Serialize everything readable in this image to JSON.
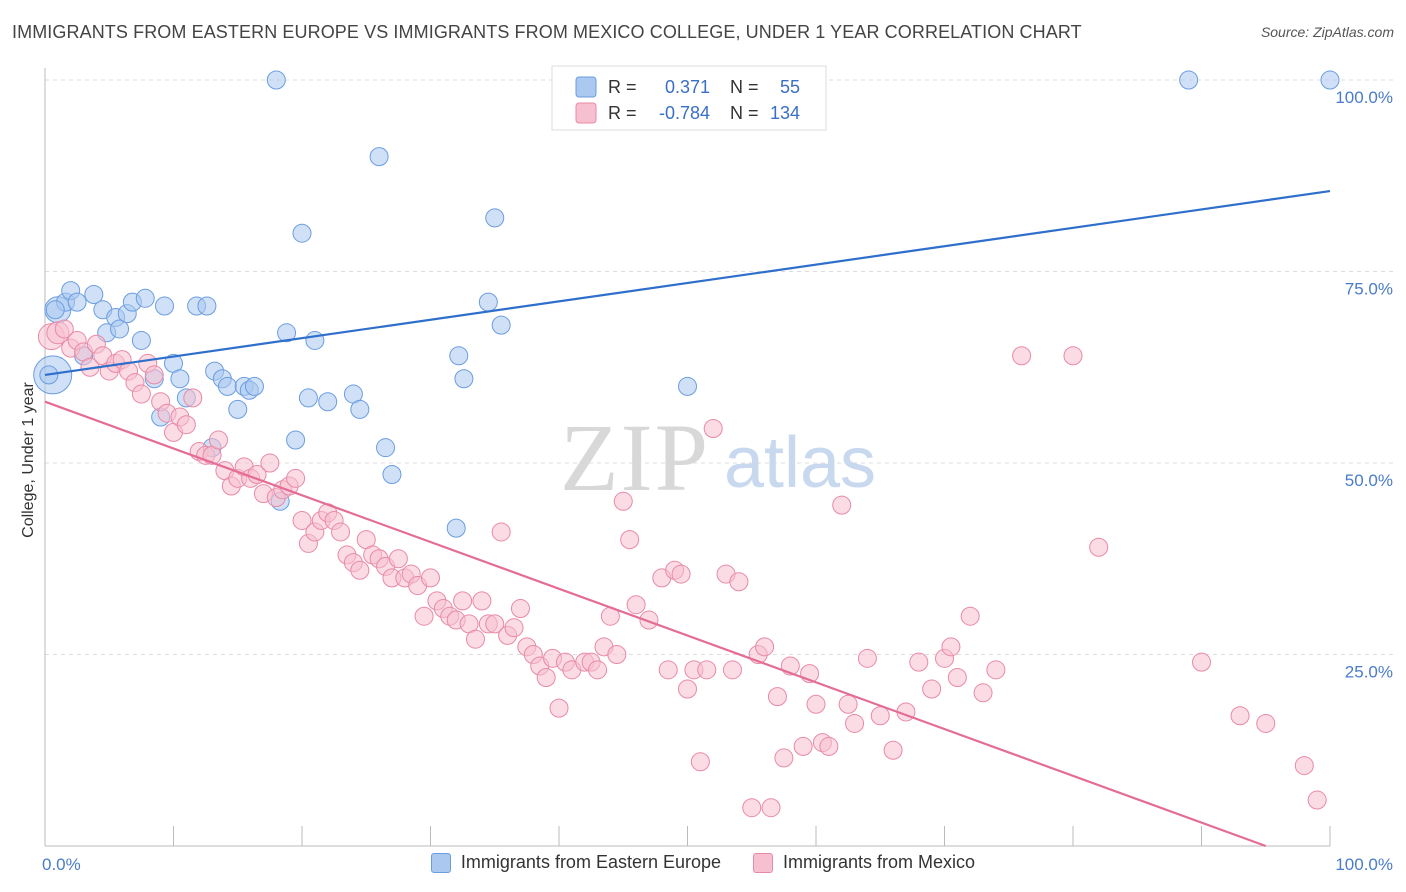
{
  "title": "IMMIGRANTS FROM EASTERN EUROPE VS IMMIGRANTS FROM MEXICO COLLEGE, UNDER 1 YEAR CORRELATION CHART",
  "source": "Source: ZipAtlas.com",
  "watermark": {
    "zip": "ZIP",
    "atlas": "atlas"
  },
  "legend": {
    "r_label": "R =",
    "n_label": "N =",
    "rows": [
      {
        "r": "0.371",
        "n": "55",
        "color": "#aac8f0",
        "stroke": "#6b9de0"
      },
      {
        "r": "-0.784",
        "n": "134",
        "color": "#f7c0d0",
        "stroke": "#e88aa6"
      }
    ]
  },
  "bottom_legend": [
    {
      "label": "Immigrants from Eastern Europe",
      "color": "#aac8f0",
      "stroke": "#6b9de0"
    },
    {
      "label": "Immigrants from Mexico",
      "color": "#f7c0d0",
      "stroke": "#e88aa6"
    }
  ],
  "chart_data": {
    "type": "scatter",
    "title": "IMMIGRANTS FROM EASTERN EUROPE VS IMMIGRANTS FROM MEXICO COLLEGE, UNDER 1 YEAR CORRELATION CHART",
    "xlabel": "",
    "ylabel": "College, Under 1 year",
    "xlim": [
      0,
      100
    ],
    "ylim": [
      0,
      100
    ],
    "x_tick_labels": [
      "0.0%",
      "100.0%"
    ],
    "y_tick_labels": [
      "25.0%",
      "50.0%",
      "75.0%",
      "100.0%"
    ],
    "y_ticks": [
      25,
      50,
      75,
      100
    ],
    "grid": true,
    "legend_position": "top-center",
    "series": [
      {
        "name": "Immigrants from Eastern Europe",
        "color": "#6b9de0",
        "fill": "#aac8f0",
        "trend": {
          "x0": 0,
          "y0": 61.5,
          "x1": 100,
          "y1": 85.5,
          "color": "#2f6fcc"
        },
        "points": [
          [
            0.6,
            61.5
          ],
          [
            1,
            70
          ],
          [
            1.6,
            71
          ],
          [
            2,
            72.5
          ],
          [
            2.5,
            71
          ],
          [
            3,
            64
          ],
          [
            3.8,
            72
          ],
          [
            4.5,
            70
          ],
          [
            4.8,
            67
          ],
          [
            5.5,
            69
          ],
          [
            5.8,
            67.5
          ],
          [
            6.4,
            69.5
          ],
          [
            6.8,
            71
          ],
          [
            7.5,
            66
          ],
          [
            7.8,
            71.5
          ],
          [
            8.5,
            61
          ],
          [
            9,
            56
          ],
          [
            9.3,
            70.5
          ],
          [
            10,
            63
          ],
          [
            10.5,
            61
          ],
          [
            11,
            58.5
          ],
          [
            11.8,
            70.5
          ],
          [
            12.6,
            70.5
          ],
          [
            13,
            52
          ],
          [
            13.2,
            62
          ],
          [
            13.8,
            61
          ],
          [
            14.2,
            60
          ],
          [
            15,
            57
          ],
          [
            15.5,
            60
          ],
          [
            15.9,
            59.5
          ],
          [
            16.3,
            60
          ],
          [
            18,
            100
          ],
          [
            18.3,
            45
          ],
          [
            18.8,
            67
          ],
          [
            19.5,
            53
          ],
          [
            20,
            80
          ],
          [
            20.5,
            58.5
          ],
          [
            21,
            66
          ],
          [
            22,
            58
          ],
          [
            24,
            59
          ],
          [
            24.5,
            57
          ],
          [
            26,
            90
          ],
          [
            26.5,
            52
          ],
          [
            27,
            48.5
          ],
          [
            32,
            41.5
          ],
          [
            32.2,
            64
          ],
          [
            32.6,
            61
          ],
          [
            34.5,
            71
          ],
          [
            35,
            82
          ],
          [
            35.5,
            68
          ],
          [
            50,
            60
          ],
          [
            89,
            100
          ],
          [
            100,
            100
          ],
          [
            0.3,
            61.5
          ],
          [
            0.8,
            70
          ]
        ]
      },
      {
        "name": "Immigrants from Mexico",
        "color": "#e88aa6",
        "fill": "#f7c0d0",
        "trend": {
          "x0": 0,
          "y0": 58,
          "x1": 95,
          "y1": 0,
          "color": "#e46d97"
        },
        "points": [
          [
            0.5,
            66.5
          ],
          [
            1,
            67
          ],
          [
            1.5,
            67.5
          ],
          [
            2,
            65
          ],
          [
            2.5,
            66
          ],
          [
            3,
            64.5
          ],
          [
            3.5,
            62.5
          ],
          [
            4,
            65.5
          ],
          [
            4.5,
            64
          ],
          [
            5,
            62
          ],
          [
            5.5,
            63
          ],
          [
            6,
            63.5
          ],
          [
            6.5,
            62
          ],
          [
            7,
            60.5
          ],
          [
            7.5,
            59
          ],
          [
            8,
            63
          ],
          [
            8.5,
            61.5
          ],
          [
            9,
            58
          ],
          [
            9.5,
            56.5
          ],
          [
            10,
            54
          ],
          [
            10.5,
            56
          ],
          [
            11,
            55
          ],
          [
            11.5,
            58.5
          ],
          [
            12,
            51.5
          ],
          [
            12.5,
            51
          ],
          [
            13,
            51
          ],
          [
            13.5,
            53
          ],
          [
            14,
            49
          ],
          [
            14.5,
            47
          ],
          [
            15,
            48
          ],
          [
            15.5,
            49.5
          ],
          [
            16,
            48
          ],
          [
            16.5,
            48.5
          ],
          [
            17,
            46
          ],
          [
            17.5,
            50
          ],
          [
            18,
            45.5
          ],
          [
            18.5,
            46.5
          ],
          [
            19,
            47
          ],
          [
            19.5,
            48
          ],
          [
            20,
            42.5
          ],
          [
            20.5,
            39.5
          ],
          [
            21,
            41
          ],
          [
            21.5,
            42.5
          ],
          [
            22,
            43.5
          ],
          [
            22.5,
            42.5
          ],
          [
            23,
            41
          ],
          [
            23.5,
            38
          ],
          [
            24,
            37
          ],
          [
            24.5,
            36
          ],
          [
            25,
            40
          ],
          [
            25.5,
            38
          ],
          [
            26,
            37.5
          ],
          [
            26.5,
            36.5
          ],
          [
            27,
            35
          ],
          [
            27.5,
            37.5
          ],
          [
            28,
            35
          ],
          [
            28.5,
            35.5
          ],
          [
            29,
            34
          ],
          [
            29.5,
            30
          ],
          [
            30,
            35
          ],
          [
            30.5,
            32
          ],
          [
            31,
            31
          ],
          [
            31.5,
            30
          ],
          [
            32,
            29.5
          ],
          [
            32.5,
            32
          ],
          [
            33,
            29
          ],
          [
            33.5,
            27
          ],
          [
            34,
            32
          ],
          [
            34.5,
            29
          ],
          [
            35,
            29
          ],
          [
            35.5,
            41
          ],
          [
            36,
            27.5
          ],
          [
            36.5,
            28.5
          ],
          [
            37,
            31
          ],
          [
            37.5,
            26
          ],
          [
            38,
            25
          ],
          [
            38.5,
            23.5
          ],
          [
            39,
            22
          ],
          [
            39.5,
            24.5
          ],
          [
            40,
            18
          ],
          [
            40.5,
            24
          ],
          [
            41,
            23
          ],
          [
            42,
            24
          ],
          [
            42.5,
            24
          ],
          [
            43,
            23
          ],
          [
            43.5,
            26
          ],
          [
            44,
            30
          ],
          [
            44.5,
            25
          ],
          [
            45,
            45
          ],
          [
            45.5,
            40
          ],
          [
            46,
            31.5
          ],
          [
            47,
            29.5
          ],
          [
            48,
            35
          ],
          [
            48.5,
            23
          ],
          [
            49,
            36
          ],
          [
            49.5,
            35.5
          ],
          [
            50,
            20.5
          ],
          [
            50.5,
            23
          ],
          [
            51,
            11
          ],
          [
            51.5,
            23
          ],
          [
            52,
            54.5
          ],
          [
            53,
            35.5
          ],
          [
            53.5,
            23
          ],
          [
            54,
            34.5
          ],
          [
            55,
            5
          ],
          [
            55.5,
            25
          ],
          [
            56,
            26
          ],
          [
            56.5,
            5
          ],
          [
            57,
            19.5
          ],
          [
            57.5,
            11.5
          ],
          [
            58,
            23.5
          ],
          [
            59,
            13
          ],
          [
            59.5,
            22.5
          ],
          [
            60,
            18.5
          ],
          [
            60.5,
            13.5
          ],
          [
            61,
            13
          ],
          [
            62,
            44.5
          ],
          [
            62.5,
            18.5
          ],
          [
            63,
            16
          ],
          [
            64,
            24.5
          ],
          [
            65,
            17
          ],
          [
            66,
            12.5
          ],
          [
            67,
            17.5
          ],
          [
            68,
            24
          ],
          [
            69,
            20.5
          ],
          [
            70,
            24.5
          ],
          [
            70.5,
            26
          ],
          [
            71,
            22
          ],
          [
            72,
            30
          ],
          [
            73,
            20
          ],
          [
            74,
            23
          ],
          [
            76,
            64
          ],
          [
            80,
            64
          ],
          [
            82,
            39
          ],
          [
            90,
            24
          ],
          [
            93,
            17
          ],
          [
            95,
            16
          ],
          [
            98,
            10.5
          ],
          [
            99,
            6
          ]
        ]
      }
    ]
  }
}
